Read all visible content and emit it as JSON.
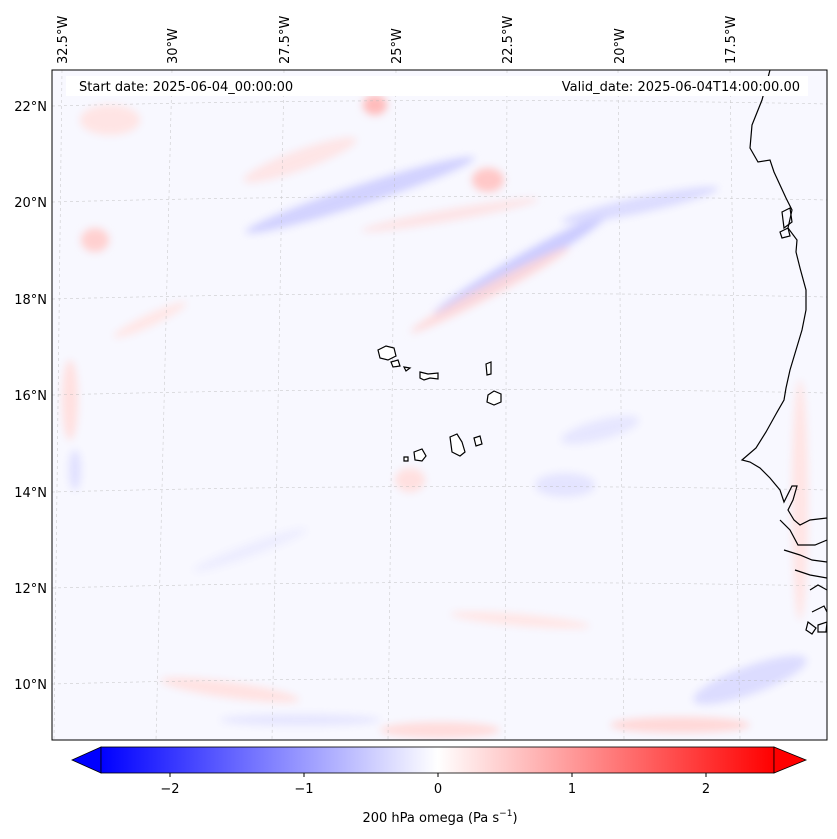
{
  "header": {
    "start_date": "Start date: 2025-06-04_00:00:00",
    "valid_date": "Valid_date: 2025-06-04T14:00:00.00"
  },
  "axes": {
    "lon_labels": [
      "32.5°W",
      "30°W",
      "27.5°W",
      "25°W",
      "22.5°W",
      "20°W",
      "17.5°W"
    ],
    "lat_labels": [
      "22°N",
      "20°N",
      "18°N",
      "16°N",
      "14°N",
      "12°N",
      "10°N"
    ]
  },
  "colorbar": {
    "ticks": [
      "−2",
      "−1",
      "0",
      "1",
      "2"
    ],
    "label_main": "200 hPa omega (Pa s",
    "label_sup": "−1",
    "label_end": ")",
    "min_color": "#0000ff",
    "max_color": "#ff0000"
  },
  "chart_data": {
    "type": "heatmap",
    "variable": "200 hPa omega",
    "units": "Pa s^-1",
    "colorbar_range": [
      -2.5,
      2.5
    ],
    "colorbar_ticks": [
      -2,
      -1,
      0,
      1,
      2
    ],
    "lon_range": [
      -32.5,
      -15.5
    ],
    "lat_range": [
      9,
      22.5
    ],
    "colormap": "bwr"
  }
}
